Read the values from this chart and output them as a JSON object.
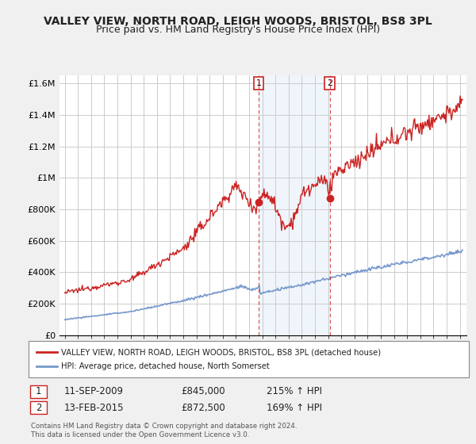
{
  "title": "VALLEY VIEW, NORTH ROAD, LEIGH WOODS, BRISTOL, BS8 3PL",
  "subtitle": "Price paid vs. HM Land Registry's House Price Index (HPI)",
  "title_fontsize": 10,
  "subtitle_fontsize": 9,
  "bg_color": "#f0f0f0",
  "plot_bg_color": "#ffffff",
  "grid_color": "#cccccc",
  "red_color": "#cc2222",
  "blue_color": "#7799cc",
  "highlight_bg": "#ddeeff",
  "sale1_date": 2009.72,
  "sale2_date": 2015.12,
  "sale1_price": 845000,
  "sale2_price": 872500,
  "ylabel_ticks": [
    "£0",
    "£200K",
    "£400K",
    "£600K",
    "£800K",
    "£1M",
    "£1.2M",
    "£1.4M",
    "£1.6M"
  ],
  "ylabel_values": [
    0,
    200000,
    400000,
    600000,
    800000,
    1000000,
    1200000,
    1400000,
    1600000
  ],
  "legend1": "VALLEY VIEW, NORTH ROAD, LEIGH WOODS, BRISTOL, BS8 3PL (detached house)",
  "legend2": "HPI: Average price, detached house, North Somerset",
  "note1_label": "1",
  "note1_date": "11-SEP-2009",
  "note1_price": "£845,000",
  "note1_hpi": "215% ↑ HPI",
  "note2_label": "2",
  "note2_date": "13-FEB-2015",
  "note2_price": "£872,500",
  "note2_hpi": "169% ↑ HPI",
  "copyright": "Contains HM Land Registry data © Crown copyright and database right 2024.\nThis data is licensed under the Open Government Licence v3.0."
}
